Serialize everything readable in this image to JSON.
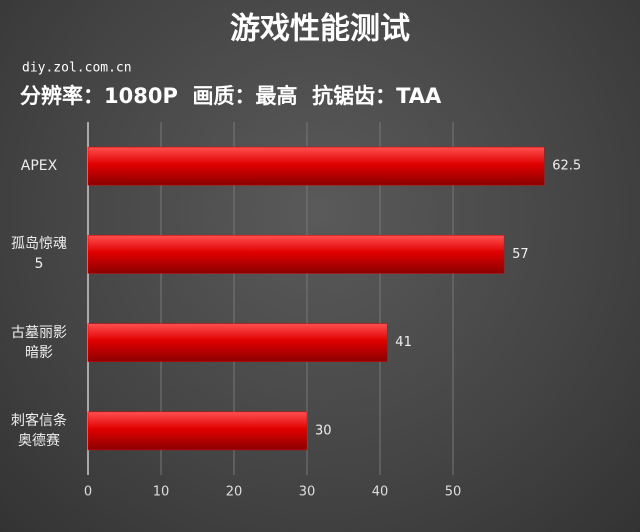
{
  "chart_data": {
    "type": "bar",
    "orientation": "horizontal",
    "title": "游戏性能测试",
    "subtitle": "diy.zol.com.cn",
    "annotation": "分辨率：1080P  画质：最高  抗锯齿：TAA",
    "categories": [
      "APEX",
      "孤岛惊魂5",
      "古墓丽影暗影",
      "刺客信条奥德赛"
    ],
    "values": [
      62.5,
      57,
      41,
      30
    ],
    "color": "#e00000",
    "xlim": [
      0,
      70
    ],
    "xticks": [
      0,
      10,
      20,
      30,
      40,
      50
    ],
    "grid": true
  }
}
